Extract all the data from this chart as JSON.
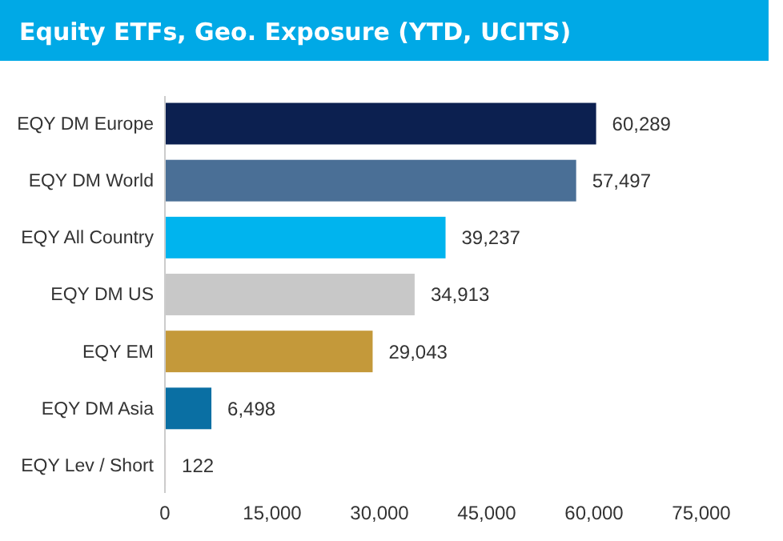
{
  "chart_data": {
    "type": "bar",
    "orientation": "horizontal",
    "title": "Equity ETFs, Geo. Exposure (YTD, UCITS)",
    "categories": [
      "EQY DM Europe",
      "EQY DM World",
      "EQY All Country",
      "EQY DM US",
      "EQY EM",
      "EQY DM Asia",
      "EQY Lev / Short"
    ],
    "values": [
      60289,
      57497,
      39237,
      34913,
      29043,
      6498,
      122
    ],
    "colors": [
      "#0c2050",
      "#4a6f96",
      "#00b4ee",
      "#c8c8c8",
      "#c4993a",
      "#0a6fa3",
      "#e8a4a4"
    ],
    "value_labels": [
      "60,289",
      "57,497",
      "39,237",
      "34,913",
      "29,043",
      "6,498",
      "122"
    ],
    "xlim": [
      0,
      75000
    ],
    "xticks": [
      0,
      {
        "value": 15000,
        "label": "15,000"
      },
      {
        "value": 30000,
        "label": "30,000"
      },
      {
        "value": 45000,
        "label": "45,000"
      },
      {
        "value": 60000,
        "label": "60,000"
      },
      {
        "value": 75000,
        "label": "75,000"
      }
    ],
    "grid": false
  }
}
